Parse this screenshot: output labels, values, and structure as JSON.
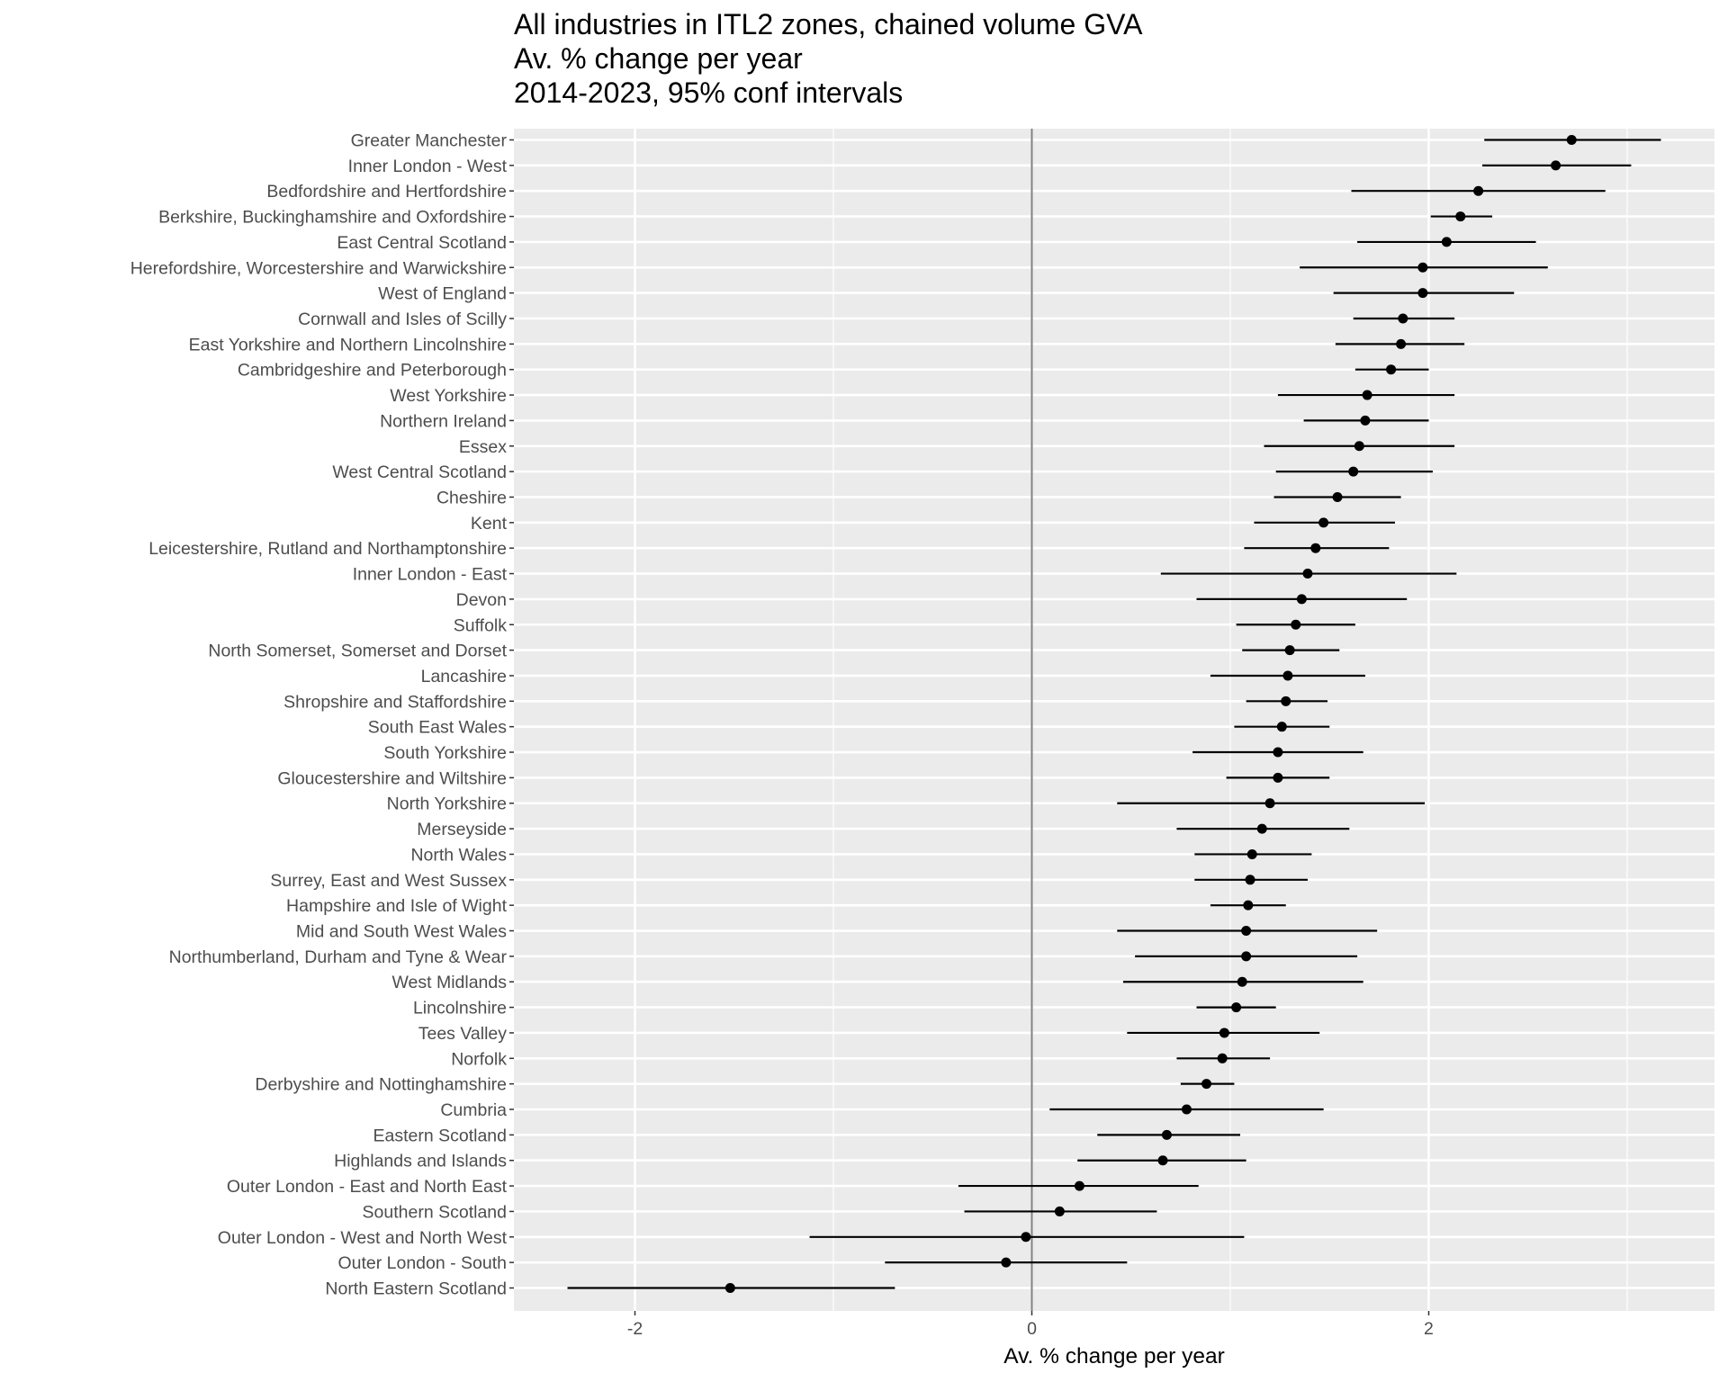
{
  "chart_data": {
    "type": "scatter",
    "subtype": "point-range",
    "title": [
      "All industries in ITL2 zones, chained volume GVA",
      "Av. % change per year",
      "2014-2023, 95% conf intervals"
    ],
    "xlabel": "Av. % change per year",
    "ylabel": "",
    "xlim": [
      -2.61,
      3.44
    ],
    "xticks": [
      -2,
      0,
      2
    ],
    "xtick_labels": [
      "-2",
      "0",
      "2"
    ],
    "grid": true,
    "reference_line_x": 0,
    "colors": {
      "panel": "#ebebeb",
      "grid": "#ffffff",
      "point": "#000000",
      "reference_line": "#7f7f7f"
    },
    "categories": [
      "Greater Manchester",
      "Inner London - West",
      "Bedfordshire and Hertfordshire",
      "Berkshire, Buckinghamshire and Oxfordshire",
      "East Central Scotland",
      "Herefordshire, Worcestershire and Warwickshire",
      "West of England",
      "Cornwall and Isles of Scilly",
      "East Yorkshire and Northern Lincolnshire",
      "Cambridgeshire and Peterborough",
      "West Yorkshire",
      "Northern Ireland",
      "Essex",
      "West Central Scotland",
      "Cheshire",
      "Kent",
      "Leicestershire, Rutland and Northamptonshire",
      "Inner London - East",
      "Devon",
      "Suffolk",
      "North Somerset, Somerset and Dorset",
      "Lancashire",
      "Shropshire and Staffordshire",
      "South East Wales",
      "South Yorkshire",
      "Gloucestershire and Wiltshire",
      "North Yorkshire",
      "Merseyside",
      "North Wales",
      "Surrey, East and West Sussex",
      "Hampshire and Isle of Wight",
      "Mid and South West Wales",
      "Northumberland, Durham and Tyne & Wear",
      "West Midlands",
      "Lincolnshire",
      "Tees Valley",
      "Norfolk",
      "Derbyshire and Nottinghamshire",
      "Cumbria",
      "Eastern Scotland",
      "Highlands and Islands",
      "Outer London - East and North East",
      "Southern Scotland",
      "Outer London - West and North West",
      "Outer London - South",
      "North Eastern Scotland"
    ],
    "values": [
      2.72,
      2.64,
      2.25,
      2.16,
      2.09,
      1.97,
      1.97,
      1.87,
      1.86,
      1.81,
      1.69,
      1.68,
      1.65,
      1.62,
      1.54,
      1.47,
      1.43,
      1.39,
      1.36,
      1.33,
      1.3,
      1.29,
      1.28,
      1.26,
      1.24,
      1.24,
      1.2,
      1.16,
      1.11,
      1.1,
      1.09,
      1.08,
      1.08,
      1.06,
      1.03,
      0.97,
      0.96,
      0.88,
      0.78,
      0.68,
      0.66,
      0.24,
      0.14,
      -0.03,
      -0.13,
      -1.52
    ],
    "lower": [
      2.28,
      2.27,
      1.61,
      2.01,
      1.64,
      1.35,
      1.52,
      1.62,
      1.53,
      1.63,
      1.24,
      1.37,
      1.17,
      1.23,
      1.22,
      1.12,
      1.07,
      0.65,
      0.83,
      1.03,
      1.06,
      0.9,
      1.08,
      1.02,
      0.81,
      0.98,
      0.43,
      0.73,
      0.82,
      0.82,
      0.9,
      0.43,
      0.52,
      0.46,
      0.83,
      0.48,
      0.73,
      0.75,
      0.09,
      0.33,
      0.23,
      -0.37,
      -0.34,
      -1.12,
      -0.74,
      -2.34
    ],
    "upper": [
      3.17,
      3.02,
      2.89,
      2.32,
      2.54,
      2.6,
      2.43,
      2.13,
      2.18,
      2.0,
      2.13,
      2.0,
      2.13,
      2.02,
      1.86,
      1.83,
      1.8,
      2.14,
      1.89,
      1.63,
      1.55,
      1.68,
      1.49,
      1.5,
      1.67,
      1.5,
      1.98,
      1.6,
      1.41,
      1.39,
      1.28,
      1.74,
      1.64,
      1.67,
      1.23,
      1.45,
      1.2,
      1.02,
      1.47,
      1.05,
      1.08,
      0.84,
      0.63,
      1.07,
      0.48,
      -0.69
    ]
  }
}
